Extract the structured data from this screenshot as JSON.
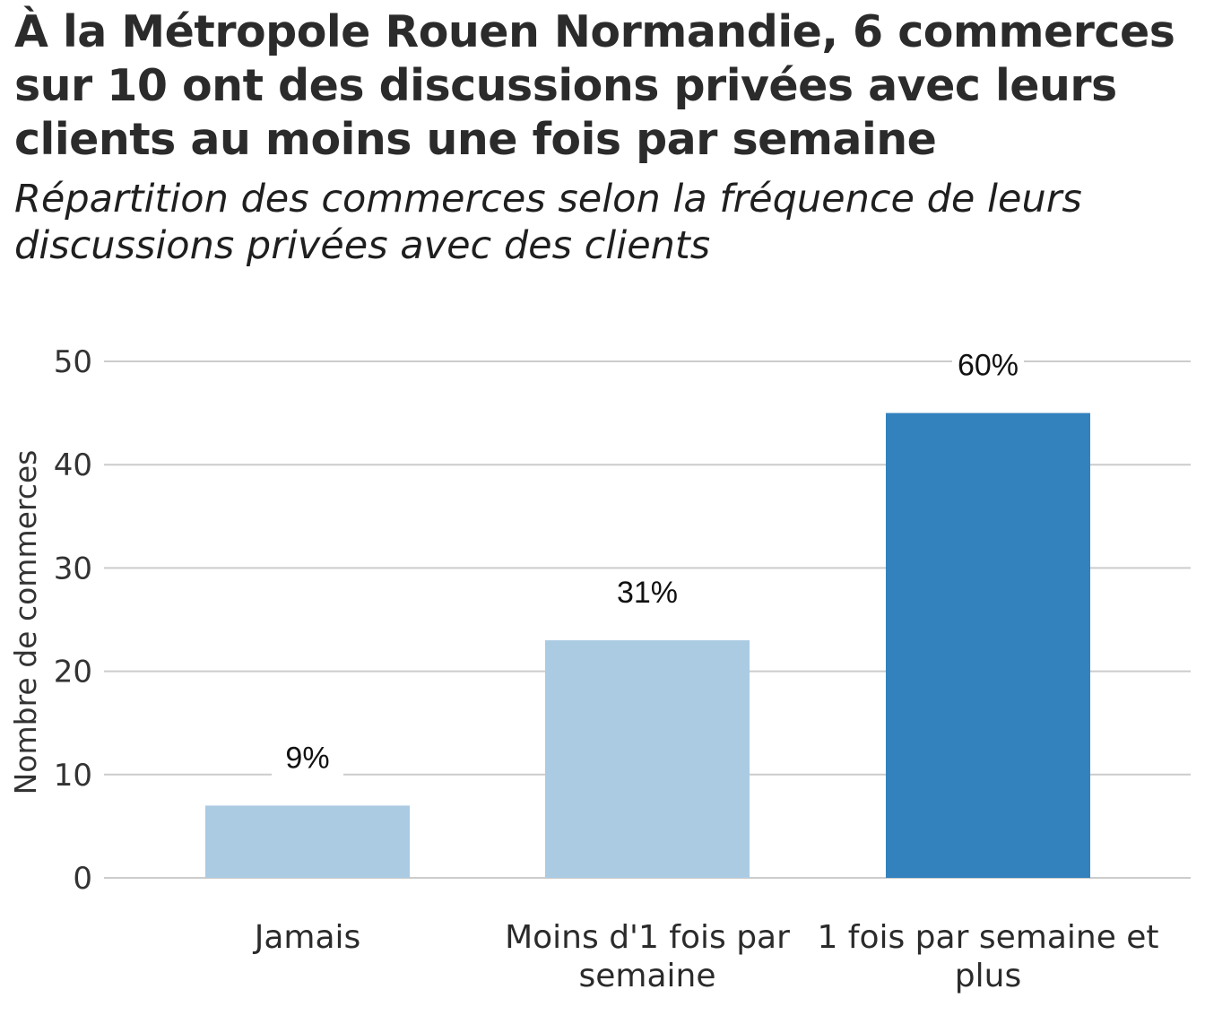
{
  "chart_data": {
    "type": "bar",
    "title": "À la Métropole Rouen Normandie, 6 commerces\nsur 10 ont des discussions privées avec leurs\nclients au moins une fois par semaine",
    "subtitle": "Répartition des commerces selon la fréquence de leurs\ndiscussions privées avec des clients",
    "xlabel": "",
    "ylabel": "Nombre de commerces",
    "ylim": [
      0,
      50
    ],
    "yticks": [
      0,
      10,
      20,
      30,
      40,
      50
    ],
    "grid": true,
    "categories": [
      [
        "Jamais"
      ],
      [
        "Moins d'1 fois par",
        "semaine"
      ],
      [
        "1 fois par semaine et",
        "plus"
      ]
    ],
    "values": [
      7,
      23,
      45
    ],
    "data_labels": [
      "9%",
      "31%",
      "60%"
    ],
    "colors": [
      "#abcbe3",
      "#abcbe3",
      "#3382be"
    ],
    "grid_color": "#cccccc"
  }
}
